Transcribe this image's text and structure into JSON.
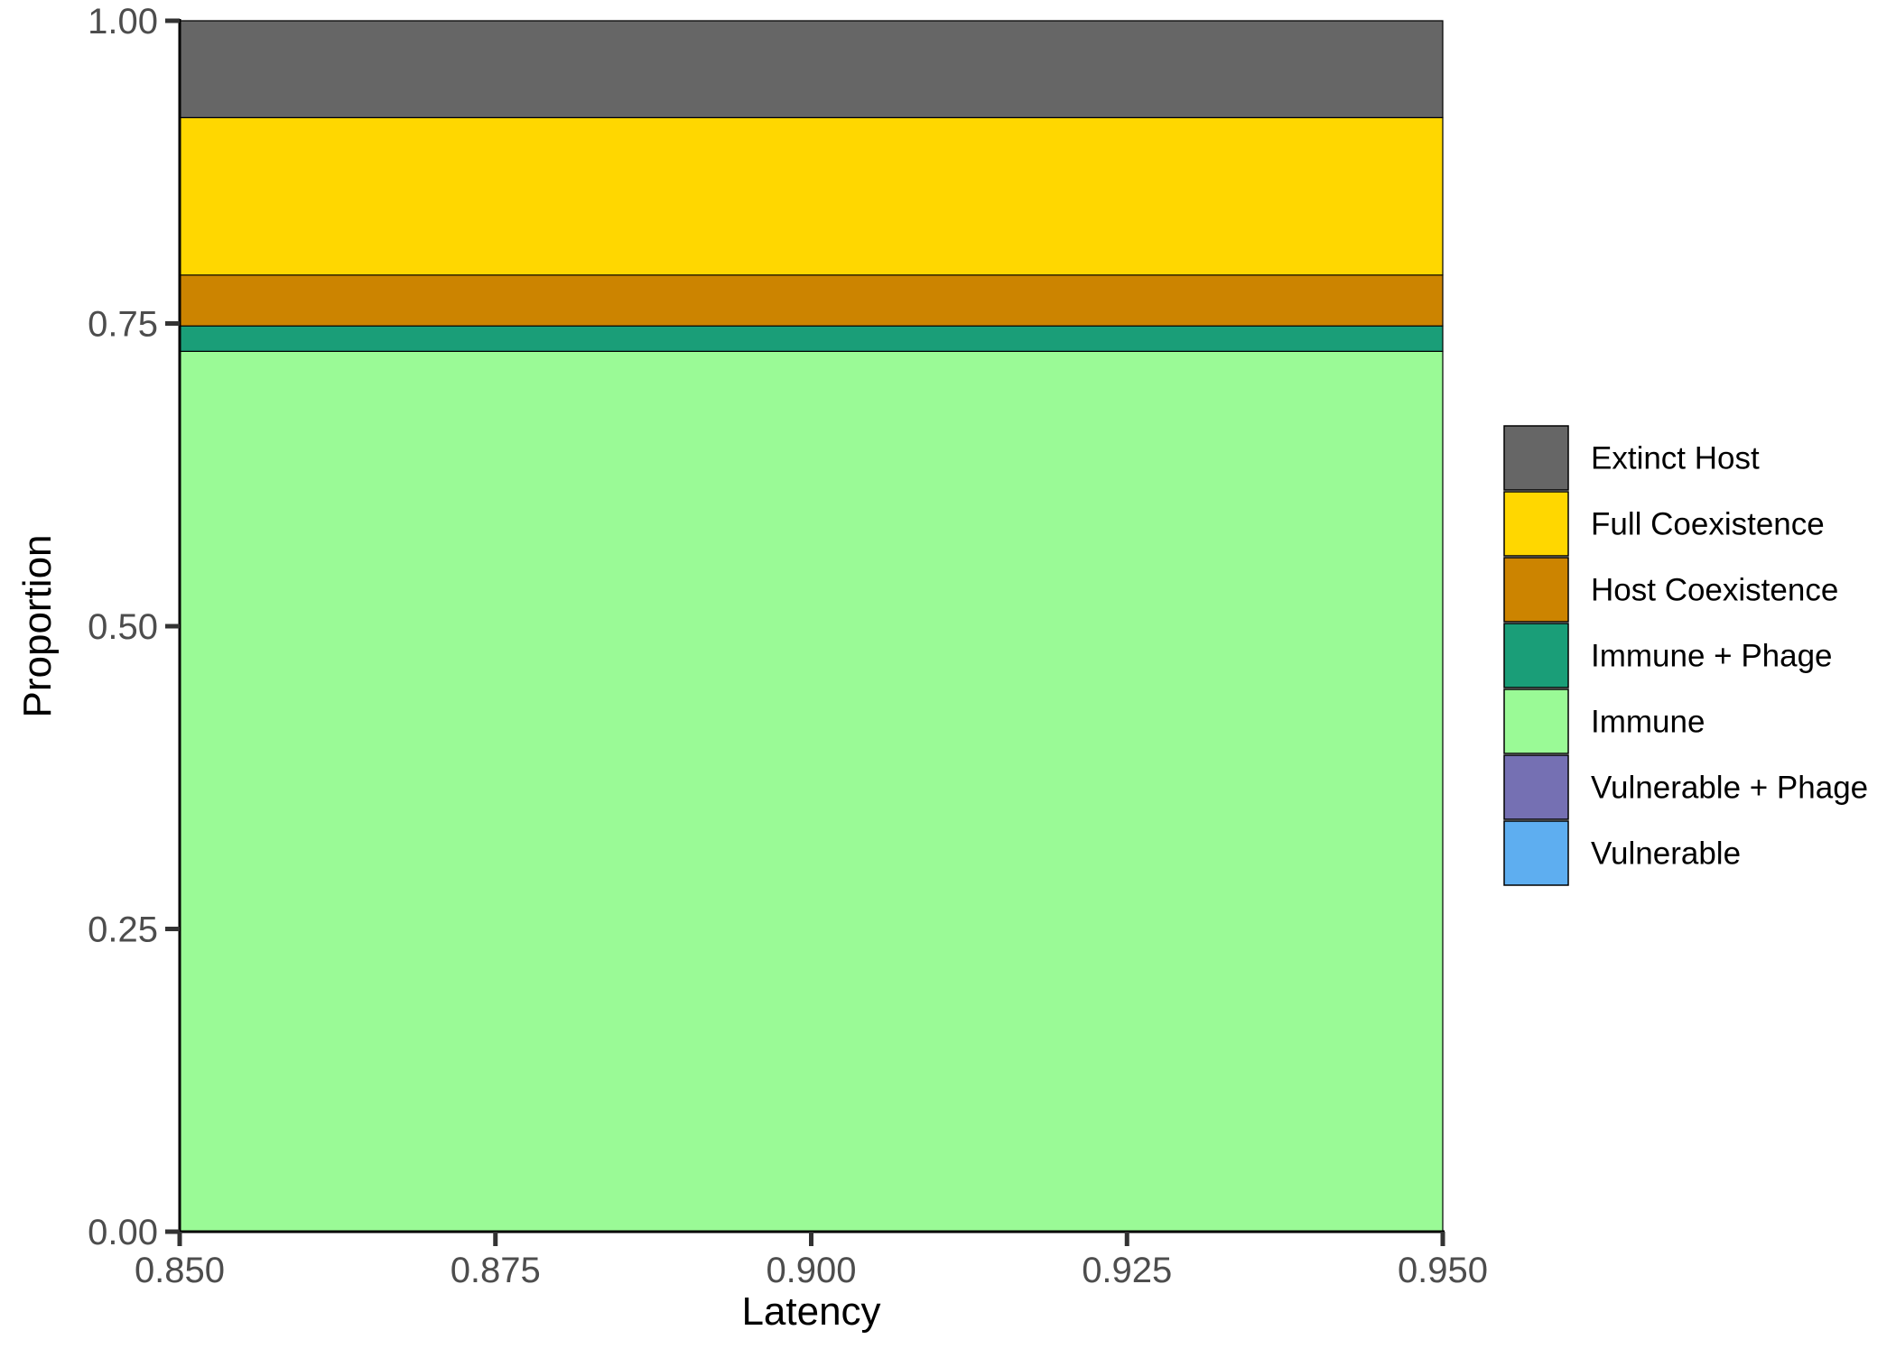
{
  "chart_data": {
    "type": "area",
    "stacked": true,
    "title": "",
    "xlabel": "Latency",
    "ylabel": "Proportion",
    "xlim": [
      0.85,
      0.95
    ],
    "ylim": [
      0,
      1
    ],
    "x_ticks": [
      "0.850",
      "0.875",
      "0.900",
      "0.925",
      "0.950"
    ],
    "y_ticks": [
      "0.00",
      "0.25",
      "0.50",
      "0.75",
      "1.00"
    ],
    "grid": false,
    "legend_position": "right",
    "x": [
      0.85,
      0.95
    ],
    "series": [
      {
        "name": "Extinct Host",
        "color": "#666666",
        "values": [
          0.08,
          0.08
        ]
      },
      {
        "name": "Full Coexistence",
        "color": "#FFD700",
        "values": [
          0.13,
          0.13
        ]
      },
      {
        "name": "Host Coexistence",
        "color": "#CC8400",
        "values": [
          0.042,
          0.042
        ]
      },
      {
        "name": "Immune + Phage",
        "color": "#1A9E78",
        "values": [
          0.021,
          0.021
        ]
      },
      {
        "name": "Immune",
        "color": "#9AFA96",
        "values": [
          0.727,
          0.727
        ]
      },
      {
        "name": "Vulnerable + Phage",
        "color": "#7570B3",
        "values": [
          0,
          0
        ]
      },
      {
        "name": "Vulnerable",
        "color": "#5EAEF0",
        "values": [
          0,
          0
        ]
      }
    ]
  }
}
